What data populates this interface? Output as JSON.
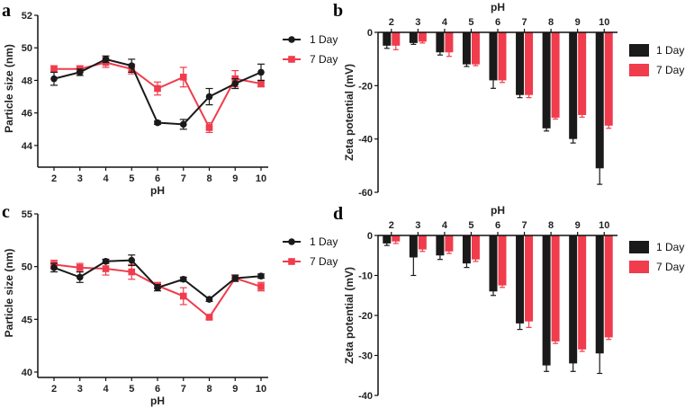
{
  "colors": {
    "day1": "#1a1a1a",
    "day7": "#f03c4c",
    "axis": "#111111"
  },
  "chart_data": [
    {
      "panel": "a",
      "type": "line",
      "x": [
        2,
        3,
        4,
        5,
        6,
        7,
        8,
        9,
        10
      ],
      "xlabel": "pH",
      "ylabel": "Particle size (nm)",
      "ylim": [
        43,
        52
      ],
      "yticks": [
        44,
        46,
        48,
        50,
        52
      ],
      "legend_position": "top-right",
      "series": [
        {
          "name": "1 Day",
          "values": [
            48.1,
            48.5,
            49.3,
            48.9,
            45.4,
            45.3,
            47.0,
            47.8,
            48.5
          ],
          "errors": [
            0.4,
            0.2,
            0.2,
            0.4,
            0.1,
            0.3,
            0.5,
            0.3,
            0.5
          ]
        },
        {
          "name": "7 Day",
          "values": [
            48.7,
            48.7,
            49.1,
            48.7,
            47.5,
            48.2,
            45.1,
            48.1,
            47.8
          ],
          "errors": [
            0.2,
            0.2,
            0.3,
            0.3,
            0.4,
            0.6,
            0.3,
            0.5,
            0.2
          ]
        }
      ]
    },
    {
      "panel": "b",
      "type": "bar",
      "categories": [
        "2",
        "3",
        "4",
        "5",
        "6",
        "7",
        "8",
        "9",
        "10"
      ],
      "xlabel": "pH",
      "ylabel": "Zeta potential (mV)",
      "ylim": [
        -60,
        0
      ],
      "yticks": [
        0,
        -20,
        -40,
        -60
      ],
      "legend_position": "right",
      "series": [
        {
          "name": "1 Day",
          "values": [
            -5,
            -4,
            -7.5,
            -12,
            -18,
            -23.5,
            -36,
            -40,
            -51
          ],
          "errors": [
            1,
            0.5,
            1,
            0.8,
            3,
            1,
            1,
            1.5,
            6
          ]
        },
        {
          "name": "7 Day",
          "values": [
            -5,
            -3.5,
            -7.5,
            -12,
            -18,
            -23.5,
            -32,
            -31,
            -35
          ],
          "errors": [
            1.5,
            0.5,
            1.5,
            0.5,
            0.8,
            1,
            0.5,
            0.8,
            1
          ]
        }
      ]
    },
    {
      "panel": "c",
      "type": "line",
      "x": [
        2,
        3,
        4,
        5,
        6,
        7,
        8,
        9,
        10
      ],
      "xlabel": "pH",
      "ylabel": "Particle size (nm)",
      "ylim": [
        40,
        55
      ],
      "yticks": [
        40,
        45,
        50,
        55
      ],
      "legend_position": "top-right",
      "series": [
        {
          "name": "1 Day",
          "values": [
            49.9,
            49.0,
            50.5,
            50.6,
            48.0,
            48.8,
            46.9,
            48.9,
            49.1
          ],
          "errors": [
            0.4,
            0.5,
            0.2,
            0.5,
            0.3,
            0.2,
            0.2,
            0.3,
            0.2
          ]
        },
        {
          "name": "7 Day",
          "values": [
            50.2,
            49.9,
            49.8,
            49.5,
            48.2,
            47.2,
            45.2,
            48.9,
            48.1
          ],
          "errors": [
            0.4,
            0.4,
            0.6,
            0.7,
            0.3,
            0.8,
            0.2,
            0.3,
            0.4
          ]
        }
      ]
    },
    {
      "panel": "d",
      "type": "bar",
      "categories": [
        "2",
        "3",
        "4",
        "5",
        "6",
        "7",
        "8",
        "9",
        "10"
      ],
      "xlabel": "pH",
      "ylabel": "Zeta potential (mV)",
      "ylim": [
        -40,
        0
      ],
      "yticks": [
        0,
        -10,
        -20,
        -30,
        -40
      ],
      "legend_position": "right",
      "series": [
        {
          "name": "1 Day",
          "values": [
            -2,
            -5.5,
            -5,
            -7,
            -14,
            -22,
            -32.5,
            -32,
            -29.5
          ],
          "errors": [
            0.5,
            4.5,
            1,
            1,
            1,
            1.5,
            1.5,
            2,
            5
          ]
        },
        {
          "name": "7 Day",
          "values": [
            -1.5,
            -3.5,
            -4,
            -6,
            -12.5,
            -21.5,
            -26.5,
            -28.5,
            -25.5
          ],
          "errors": [
            0.5,
            0.5,
            0.5,
            0.5,
            0.5,
            1.5,
            0.5,
            0.5,
            0.5
          ]
        }
      ]
    }
  ]
}
